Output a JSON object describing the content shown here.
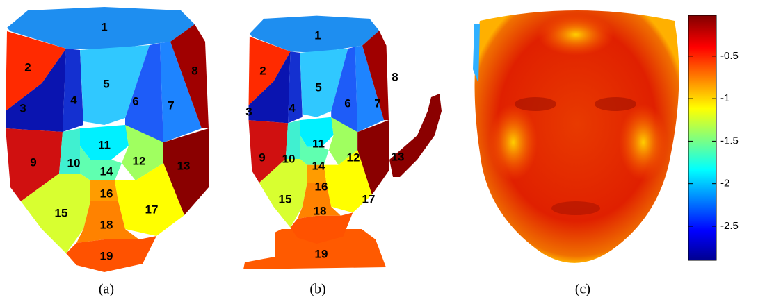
{
  "panels": [
    {
      "caption": "(a)",
      "region_labels": [
        "1",
        "2",
        "3",
        "4",
        "5",
        "6",
        "7",
        "8",
        "9",
        "10",
        "11",
        "12",
        "13",
        "14",
        "15",
        "16",
        "17",
        "18",
        "19"
      ]
    },
    {
      "caption": "(b)",
      "region_labels": [
        "1",
        "2",
        "3",
        "4",
        "5",
        "6",
        "7",
        "8",
        "9",
        "10",
        "11",
        "12",
        "13",
        "14",
        "15",
        "16",
        "17",
        "18",
        "19"
      ]
    },
    {
      "caption": "(c)",
      "colorbar": {
        "clim": [
          -2.9,
          -0.02
        ],
        "ticks": [
          -0.5,
          -1,
          -1.5,
          -2,
          -2.5
        ]
      }
    }
  ]
}
